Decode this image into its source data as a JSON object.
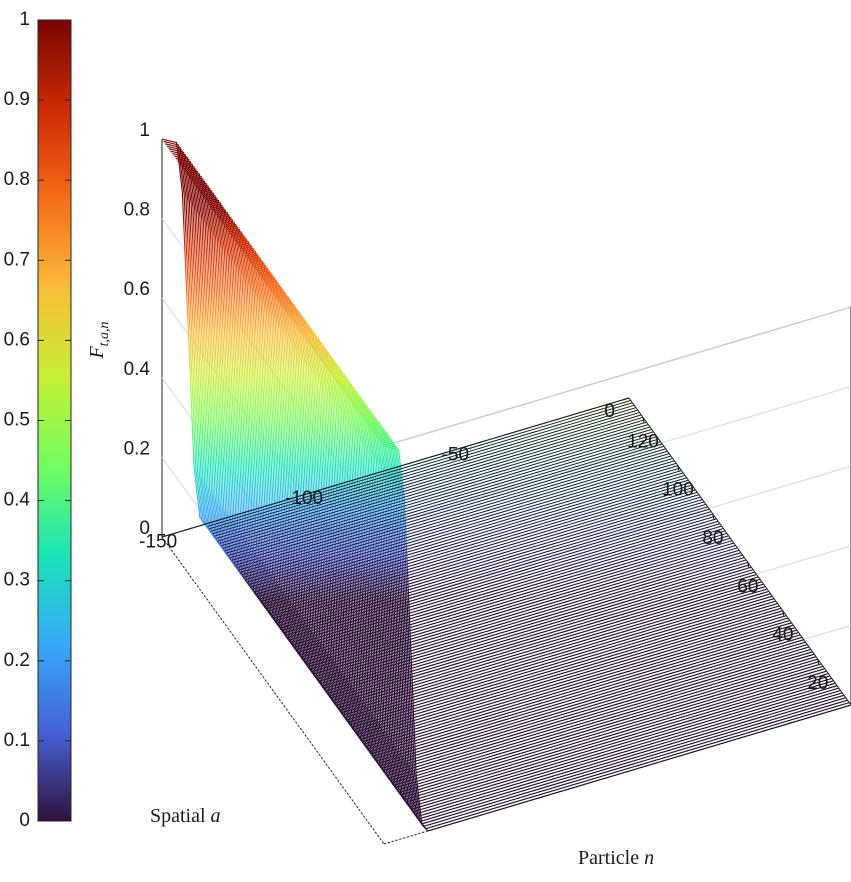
{
  "chart_data": {
    "type": "surface",
    "title": "",
    "zlabel_base": "F",
    "zlabel_sub": "t,a,n",
    "xlabel_text": "Spatial",
    "xlabel_var": "a",
    "ylabel_text": "Particle",
    "ylabel_var": "n",
    "colormap": "turbo",
    "colorbar": {
      "range": [
        0,
        1
      ],
      "ticks": [
        "0",
        "0.1",
        "0.2",
        "0.3",
        "0.4",
        "0.5",
        "0.6",
        "0.7",
        "0.8",
        "0.9",
        "1"
      ],
      "stops": [
        "#30123b",
        "#4662d7",
        "#36aaf9",
        "#1ae4b6",
        "#72fe5e",
        "#c7ef34",
        "#fabb39",
        "#f66b19",
        "#cb2a04",
        "#7a0403"
      ]
    },
    "x_axis": {
      "label": "Spatial a",
      "range": [
        -160,
        0
      ],
      "ticks": [
        "-150",
        "-100",
        "-50",
        "0"
      ]
    },
    "y_axis": {
      "label": "Particle n",
      "range": [
        1,
        128
      ],
      "ticks": [
        "20",
        "40",
        "60",
        "80",
        "100",
        "120"
      ]
    },
    "z_axis": {
      "range": [
        0,
        1
      ],
      "ticks": [
        "0",
        "0.2",
        "0.4",
        "0.6",
        "0.8",
        "1"
      ]
    },
    "series_description": "F(a) is approximately 1 for a below -150, drops steeply to 0 near a = -150, and stays 0 up to a = 0; the same profile for every particle n",
    "series": [
      {
        "a": -160,
        "F": 1.0
      },
      {
        "a": -155,
        "F": 0.98
      },
      {
        "a": -153,
        "F": 0.85
      },
      {
        "a": -151,
        "F": 0.5
      },
      {
        "a": -149,
        "F": 0.15
      },
      {
        "a": -147,
        "F": 0.02
      },
      {
        "a": -145,
        "F": 0.0
      },
      {
        "a": 0,
        "F": 0.0
      }
    ],
    "grid": true
  }
}
